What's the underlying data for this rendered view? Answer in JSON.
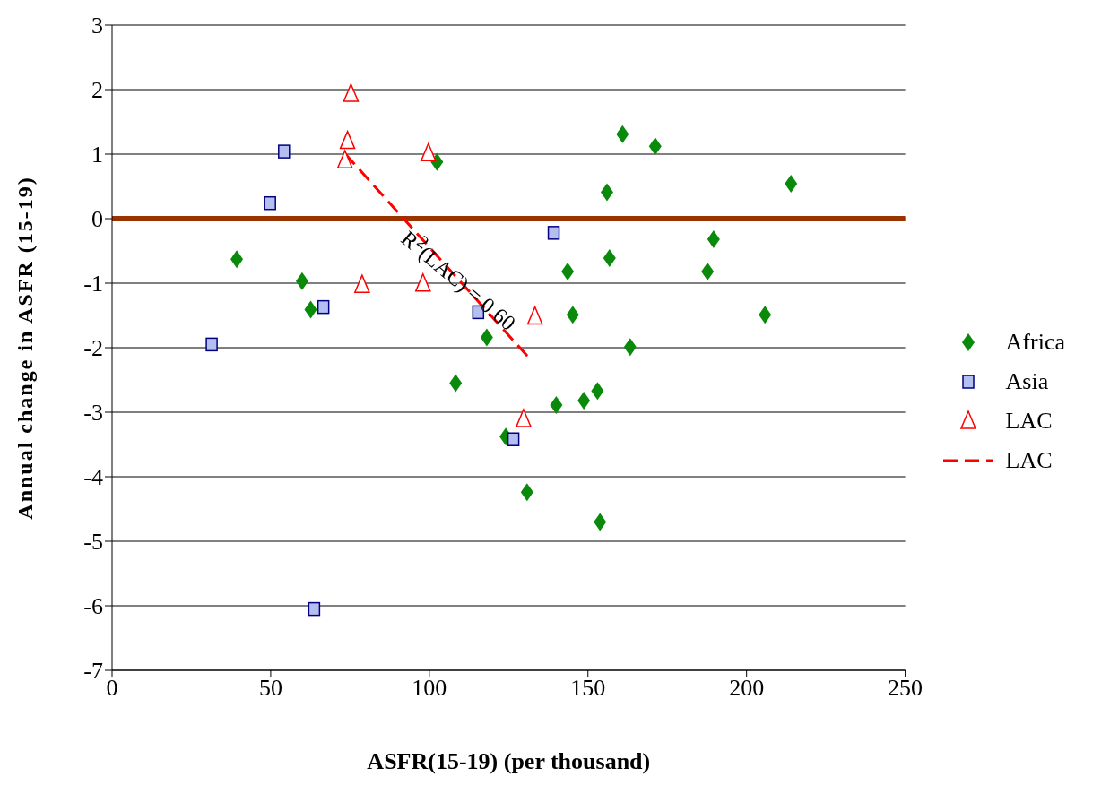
{
  "chart_data": {
    "type": "scatter",
    "xlabel": "ASFR(15-19) (per thousand)",
    "ylabel": "Annual change in ASFR (15-19)",
    "xlim": [
      0,
      250
    ],
    "xticks": [
      0,
      50,
      100,
      150,
      200,
      250
    ],
    "ylim": [
      -7,
      3
    ],
    "yticks": [
      -7,
      -6,
      -5,
      -4,
      -3,
      -2,
      -1,
      0,
      1,
      2,
      3
    ],
    "grid": "y",
    "legend": "right",
    "series": [
      {
        "name": "Africa",
        "color": "#0a8a0a",
        "marker": "diamond",
        "x": [
          39.3,
          59.9,
          62.6,
          102.4,
          108.3,
          118.1,
          124.1,
          130.8,
          140.0,
          143.6,
          145.2,
          148.7,
          153.0,
          153.8,
          156.0,
          156.8,
          160.9,
          163.3,
          171.2,
          187.7,
          189.6,
          205.8,
          214.0
        ],
        "values": [
          -0.63,
          -0.97,
          -1.41,
          0.88,
          -2.55,
          -1.84,
          -3.38,
          -4.24,
          -2.89,
          -0.82,
          -1.49,
          -2.82,
          -2.67,
          -4.7,
          0.41,
          -0.61,
          1.31,
          -1.99,
          1.12,
          -0.82,
          -0.32,
          -1.49,
          0.54
        ]
      },
      {
        "name": "Asia",
        "color": "#b4bff0",
        "marker": "square",
        "x": [
          31.4,
          49.8,
          54.2,
          63.7,
          66.6,
          115.4,
          126.5,
          139.2
        ],
        "values": [
          -1.95,
          0.24,
          1.04,
          -6.05,
          -1.37,
          -1.45,
          -3.42,
          -0.22
        ]
      },
      {
        "name": "LAC",
        "color": "#ff0000",
        "marker": "triangle",
        "x": [
          73.4,
          74.2,
          75.3,
          78.8,
          98.0,
          99.7,
          129.7,
          133.3
        ],
        "values": [
          0.9,
          1.2,
          1.93,
          -1.03,
          -1.01,
          1.01,
          -3.11,
          -1.52
        ]
      },
      {
        "name": "LAC",
        "type": "line",
        "color": "#ff0000",
        "line_style": "dashed",
        "x": [
          73.4,
          131.1
        ],
        "values": [
          1.01,
          -2.14
        ]
      }
    ],
    "ref_lines": [
      {
        "axis": "y",
        "value": 0,
        "color": "#993300"
      }
    ],
    "annotations": [
      "R$^{2}$(LAC) = 0.60"
    ]
  }
}
